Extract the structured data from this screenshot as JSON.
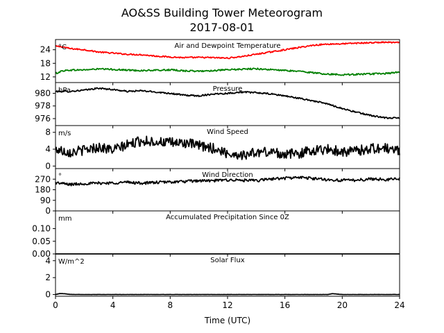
{
  "title": "AO&SS Building Tower Meteorogram",
  "subtitle": "2017-08-01",
  "xlabel": "Time (UTC)",
  "chart_data": {
    "type": "line",
    "xlim": [
      0,
      24
    ],
    "xticks": [
      "0",
      "4",
      "8",
      "12",
      "16",
      "20",
      "24"
    ],
    "grid": false,
    "panels": [
      {
        "title": "Air and Dewpoint Temperature",
        "unit": "°C",
        "ylim": [
          9.5,
          28.5
        ],
        "yticks": [
          "12",
          "18",
          "24"
        ],
        "series": [
          {
            "color": "#ff0000",
            "noise": 0.3,
            "points": [
              [
                0,
                25.5
              ],
              [
                0.5,
                25.3
              ],
              [
                1,
                24.5
              ],
              [
                2,
                24
              ],
              [
                3,
                23
              ],
              [
                4,
                22.5
              ],
              [
                5,
                22
              ],
              [
                6,
                21.8
              ],
              [
                7,
                21.2
              ],
              [
                8,
                20.8
              ],
              [
                9,
                20.5
              ],
              [
                10,
                20.6
              ],
              [
                11,
                20.5
              ],
              [
                12,
                20.3
              ],
              [
                13,
                21
              ],
              [
                14,
                22
              ],
              [
                15,
                23
              ],
              [
                16,
                24
              ],
              [
                17,
                25
              ],
              [
                18,
                26
              ],
              [
                19,
                26.5
              ],
              [
                20,
                26.6
              ],
              [
                21,
                26.9
              ],
              [
                22,
                27.1
              ],
              [
                23,
                27.3
              ],
              [
                24,
                27.1
              ]
            ]
          },
          {
            "color": "#008000",
            "noise": 0.35,
            "points": [
              [
                0,
                13.5
              ],
              [
                0.5,
                14.7
              ],
              [
                1,
                15
              ],
              [
                2,
                15.1
              ],
              [
                3,
                15.5
              ],
              [
                4,
                15.3
              ],
              [
                5,
                15
              ],
              [
                6,
                14.8
              ],
              [
                7,
                14.9
              ],
              [
                8,
                15.1
              ],
              [
                9,
                14.7
              ],
              [
                10,
                14.5
              ],
              [
                11,
                14.8
              ],
              [
                12,
                15.1
              ],
              [
                13,
                15.4
              ],
              [
                14,
                15.6
              ],
              [
                15,
                15.2
              ],
              [
                16,
                14.8
              ],
              [
                17,
                14.5
              ],
              [
                18,
                13.8
              ],
              [
                19,
                13.2
              ],
              [
                20,
                13
              ],
              [
                21,
                13.1
              ],
              [
                22,
                13.3
              ],
              [
                23,
                13.5
              ],
              [
                24,
                14
              ]
            ]
          }
        ]
      },
      {
        "title": "Pressure",
        "unit": "hPa",
        "ylim": [
          974.9,
          981.7
        ],
        "yticks": [
          "976",
          "978",
          "980"
        ],
        "series": [
          {
            "color": "#000000",
            "noise": 0.12,
            "points": [
              [
                0,
                980.3
              ],
              [
                1,
                980.3
              ],
              [
                2,
                980.5
              ],
              [
                3,
                980.8
              ],
              [
                4,
                980.6
              ],
              [
                5,
                980.3
              ],
              [
                6,
                980.4
              ],
              [
                7,
                980.2
              ],
              [
                8,
                980.0
              ],
              [
                9,
                979.7
              ],
              [
                10,
                979.6
              ],
              [
                11,
                979.9
              ],
              [
                12,
                980.0
              ],
              [
                13,
                980.2
              ],
              [
                14,
                980.1
              ],
              [
                15,
                979.9
              ],
              [
                16,
                979.6
              ],
              [
                17,
                979.2
              ],
              [
                18,
                978.8
              ],
              [
                19,
                978.3
              ],
              [
                20,
                977.6
              ],
              [
                21,
                977.0
              ],
              [
                22,
                976.5
              ],
              [
                23,
                976.1
              ],
              [
                24,
                976.1
              ]
            ]
          }
        ]
      },
      {
        "title": "Wind Speed",
        "unit": "m/s",
        "ylim": [
          -0.6,
          9.6
        ],
        "yticks": [
          "0",
          "4",
          "8"
        ],
        "series": [
          {
            "color": "#000000",
            "noise": 1.2,
            "points": [
              [
                0,
                4
              ],
              [
                1,
                3.3
              ],
              [
                2,
                3.8
              ],
              [
                3,
                4.5
              ],
              [
                4,
                3.8
              ],
              [
                5,
                5
              ],
              [
                6,
                6
              ],
              [
                7,
                5.8
              ],
              [
                8,
                5.5
              ],
              [
                9,
                5.5
              ],
              [
                10,
                4.8
              ],
              [
                11,
                4.2
              ],
              [
                12,
                3
              ],
              [
                13,
                2.6
              ],
              [
                14,
                3.2
              ],
              [
                15,
                3.4
              ],
              [
                16,
                2.8
              ],
              [
                17,
                3
              ],
              [
                18,
                3.8
              ],
              [
                19,
                4
              ],
              [
                20,
                3.4
              ],
              [
                21,
                3.6
              ],
              [
                22,
                4.2
              ],
              [
                23,
                4.2
              ],
              [
                24,
                3.6
              ]
            ]
          }
        ]
      },
      {
        "title": "Wind Direction",
        "unit": "°",
        "ylim": [
          0,
          360
        ],
        "yticks": [
          "0",
          "90",
          "180",
          "270"
        ],
        "series": [
          {
            "color": "#000000",
            "noise": 12,
            "points": [
              [
                0,
                240
              ],
              [
                1,
                225
              ],
              [
                2,
                232
              ],
              [
                3,
                236
              ],
              [
                4,
                238
              ],
              [
                5,
                244
              ],
              [
                6,
                236
              ],
              [
                7,
                242
              ],
              [
                8,
                246
              ],
              [
                9,
                250
              ],
              [
                10,
                257
              ],
              [
                11,
                256
              ],
              [
                12,
                264
              ],
              [
                13,
                260
              ],
              [
                14,
                257
              ],
              [
                15,
                272
              ],
              [
                16,
                278
              ],
              [
                17,
                285
              ],
              [
                18,
                276
              ],
              [
                19,
                265
              ],
              [
                20,
                260
              ],
              [
                21,
                262
              ],
              [
                22,
                272
              ],
              [
                23,
                267
              ],
              [
                24,
                272
              ]
            ]
          }
        ]
      },
      {
        "title": "Accumulated Precipitation Since 0Z",
        "unit": "mm",
        "ylim": [
          0,
          0.17
        ],
        "yticks": [
          "0.00",
          "0.05",
          "0.10"
        ],
        "series": [
          {
            "color": "#000000",
            "noise": 0,
            "points": [
              [
                0,
                0
              ],
              [
                24,
                0
              ]
            ]
          }
        ]
      },
      {
        "title": "Solar Flux",
        "unit": "W/m^2",
        "ylim": [
          -0.2,
          4.8
        ],
        "yticks": [
          "0",
          "2",
          "4"
        ],
        "series": [
          {
            "color": "#000000",
            "noise": 0.01,
            "points": [
              [
                0,
                0
              ],
              [
                0.3,
                0.12
              ],
              [
                0.6,
                0.1
              ],
              [
                1,
                0.02
              ],
              [
                1.5,
                0
              ],
              [
                19,
                0
              ],
              [
                19.3,
                0.1
              ],
              [
                19.6,
                0.06
              ],
              [
                20,
                0
              ],
              [
                24,
                0
              ]
            ]
          }
        ]
      }
    ]
  }
}
